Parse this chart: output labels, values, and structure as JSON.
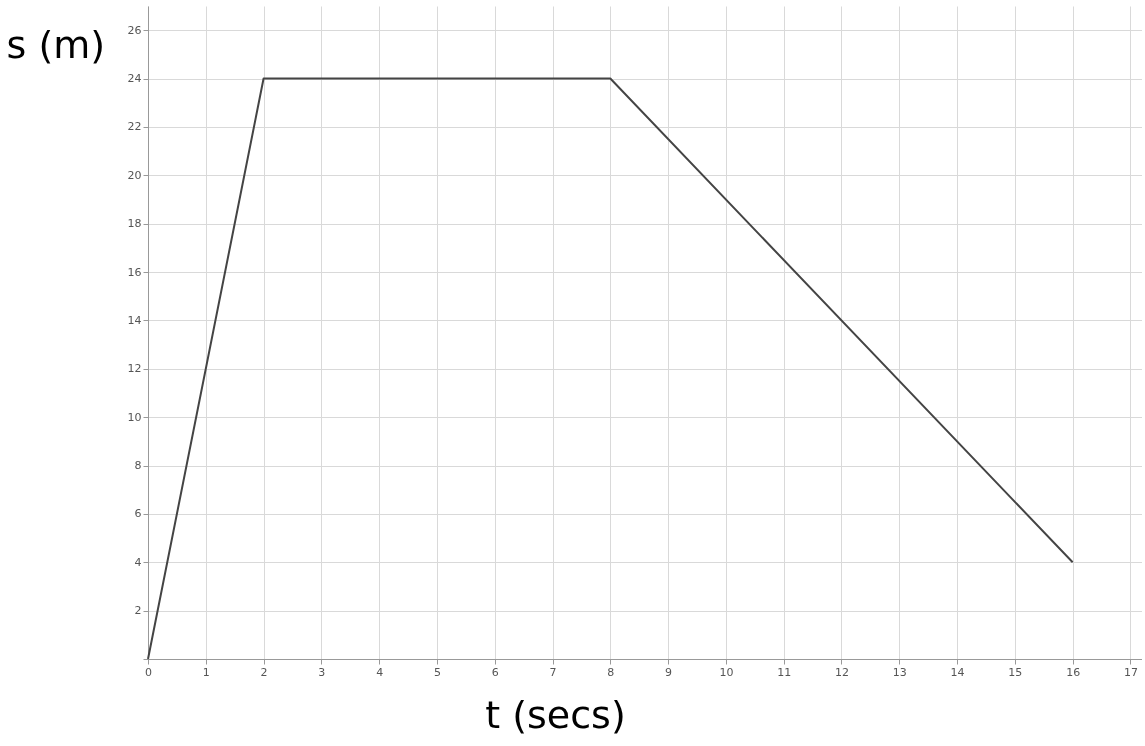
{
  "chart_data": {
    "type": "line",
    "xlabel": "t (secs)",
    "ylabel": "s (m)",
    "x": [
      0,
      2,
      8,
      16
    ],
    "series": [
      {
        "color": "#444444",
        "values": [
          0,
          24,
          24,
          4
        ]
      }
    ],
    "xlim": [
      0,
      17.2
    ],
    "ylim": [
      0,
      27
    ],
    "xticks": [
      0,
      1,
      2,
      3,
      4,
      5,
      6,
      7,
      8,
      9,
      10,
      11,
      12,
      13,
      14,
      15,
      16,
      17
    ],
    "yticks": [
      {
        "value": 0,
        "label": null
      },
      2,
      4,
      6,
      8,
      10,
      12,
      14,
      16,
      18,
      20,
      22,
      24,
      26
    ],
    "grid": true,
    "marker": "none",
    "line_style": "solid"
  }
}
